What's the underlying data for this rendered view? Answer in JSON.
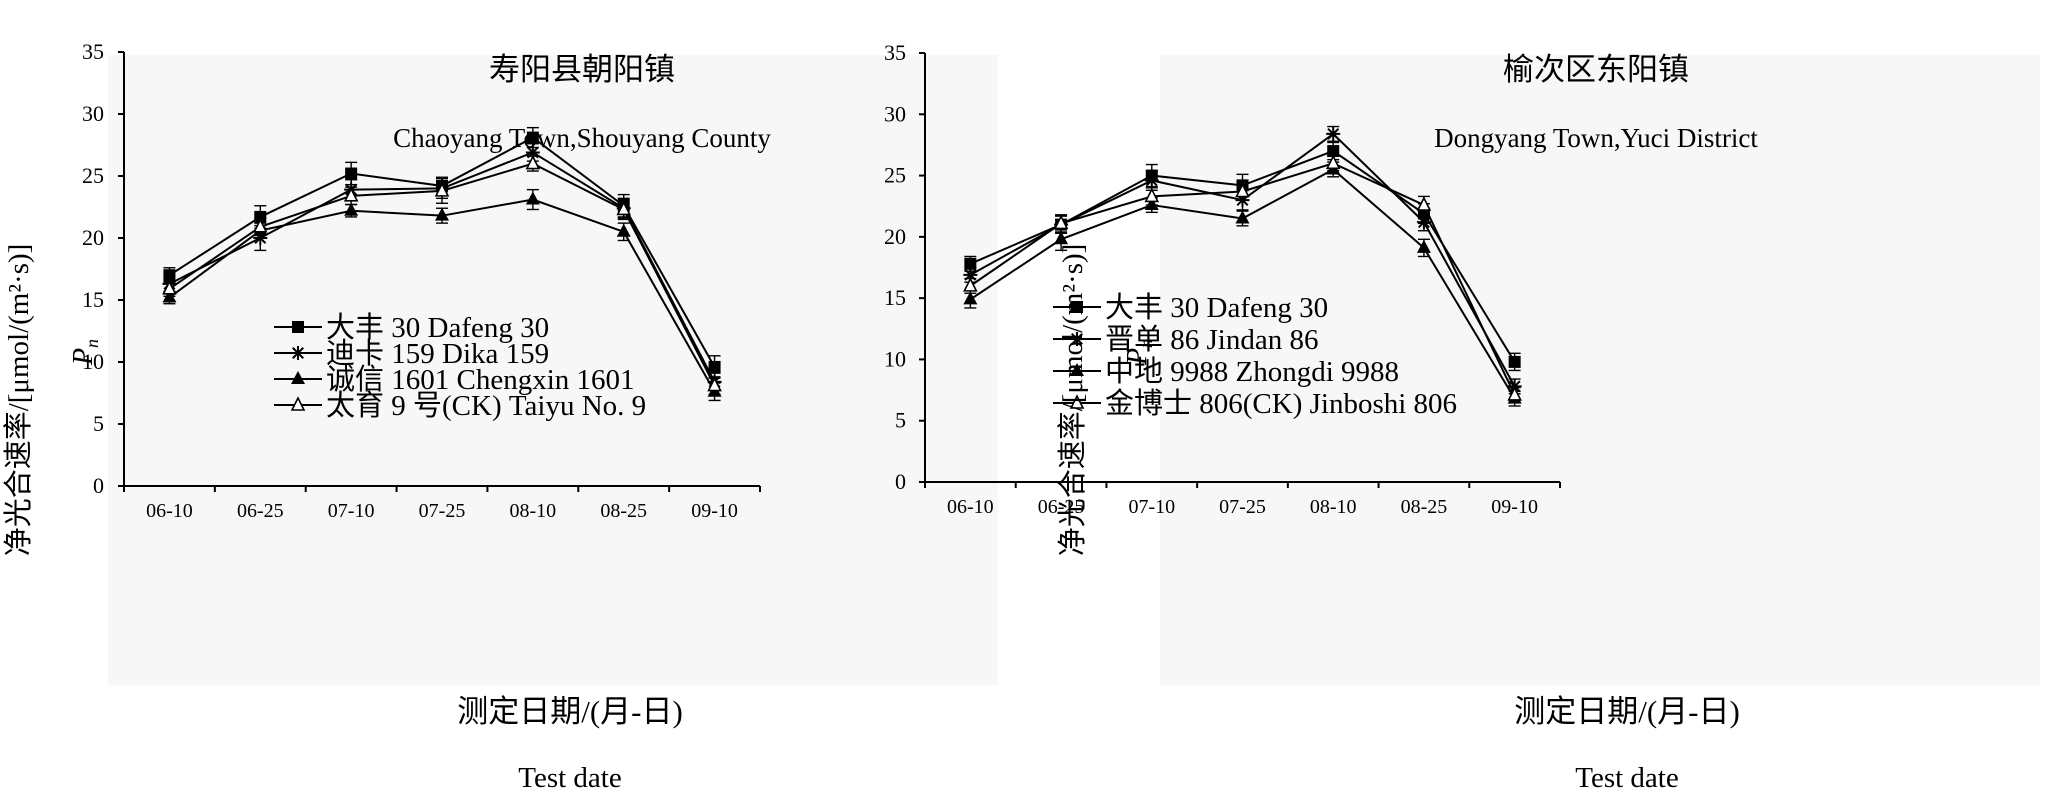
{
  "figure": {
    "ylabel_cn": "净光合速率/[μmol/(m²·s)]",
    "ylabel_symbol": "P",
    "ylabel_symbol_sub": "n",
    "xlabel_cn": "测定日期/(月-日)",
    "xlabel_en": "Test date"
  },
  "chart_data": [
    {
      "type": "line",
      "title": "寿阳县朝阳镇",
      "subtitle": "Chaoyang Town,Shouyang County",
      "xlabel": "测定日期/(月-日) Test date",
      "ylabel": "净光合速率/[μmol/(m²·s)] Pn",
      "ylim": [
        0,
        35
      ],
      "yticks": [
        0,
        5,
        10,
        15,
        20,
        25,
        30,
        35
      ],
      "categories": [
        "06-10",
        "06-25",
        "07-10",
        "07-25",
        "08-10",
        "08-25",
        "09-10"
      ],
      "legend_position": "lower-center",
      "series": [
        {
          "name": "大丰 30 Dafeng 30",
          "marker": "square",
          "values": [
            17.0,
            21.7,
            25.2,
            24.2,
            28.1,
            22.6,
            9.6
          ],
          "errors": [
            0.6,
            0.9,
            0.9,
            0.7,
            0.8,
            0.9,
            0.9
          ]
        },
        {
          "name": "迪卡 159 Dika 159",
          "marker": "star",
          "values": [
            16.3,
            20.0,
            23.9,
            24.0,
            26.9,
            22.4,
            8.4
          ],
          "errors": [
            0.7,
            1.0,
            0.8,
            0.8,
            0.7,
            0.8,
            0.7
          ]
        },
        {
          "name": "诚信 1601 Chengxin 1601",
          "marker": "filled-triangle",
          "values": [
            15.2,
            20.6,
            22.2,
            21.8,
            23.1,
            20.5,
            7.6
          ],
          "errors": [
            0.5,
            0.6,
            0.5,
            0.6,
            0.8,
            0.7,
            0.7
          ]
        },
        {
          "name": "太育 9 号(CK) Taiyu No. 9",
          "marker": "open-triangle",
          "values": [
            15.9,
            20.9,
            23.4,
            23.8,
            26.0,
            22.3,
            8.1
          ],
          "errors": [
            0.6,
            0.7,
            0.7,
            1.0,
            0.6,
            0.8,
            0.7
          ]
        }
      ]
    },
    {
      "type": "line",
      "title": "榆次区东阳镇",
      "subtitle": "Dongyang Town,Yuci District",
      "xlabel": "测定日期/(月-日) Test date",
      "ylabel": "净光合速率/[μmol/(m²·s)] Pn",
      "ylim": [
        0,
        35
      ],
      "yticks": [
        0,
        5,
        10,
        15,
        20,
        25,
        30,
        35
      ],
      "categories": [
        "06-10",
        "06-25",
        "07-10",
        "07-25",
        "08-10",
        "08-25",
        "09-10"
      ],
      "legend_position": "lower-center",
      "series": [
        {
          "name": "大丰 30 Dafeng 30",
          "marker": "square",
          "values": [
            17.8,
            21.0,
            25.0,
            24.2,
            27.0,
            21.9,
            9.8
          ],
          "errors": [
            0.6,
            0.7,
            0.9,
            0.9,
            0.7,
            0.8,
            0.7
          ]
        },
        {
          "name": "晋单 86 Jindan 86",
          "marker": "star",
          "values": [
            16.9,
            21.0,
            24.6,
            23.0,
            28.4,
            21.2,
            7.8
          ],
          "errors": [
            0.6,
            0.7,
            0.8,
            0.8,
            0.6,
            0.7,
            0.6
          ]
        },
        {
          "name": "中地 9988 Zhongdi 9988",
          "marker": "filled-triangle",
          "values": [
            14.9,
            19.8,
            22.6,
            21.5,
            25.5,
            19.1,
            6.8
          ],
          "errors": [
            0.7,
            0.9,
            0.6,
            0.6,
            0.6,
            0.7,
            0.6
          ]
        },
        {
          "name": "金博士 806(CK) Jinboshi 806",
          "marker": "open-triangle",
          "values": [
            16.0,
            21.1,
            23.3,
            23.7,
            26.0,
            22.6,
            7.1
          ],
          "errors": [
            0.6,
            0.7,
            0.7,
            0.7,
            0.6,
            0.7,
            0.6
          ]
        }
      ]
    }
  ]
}
